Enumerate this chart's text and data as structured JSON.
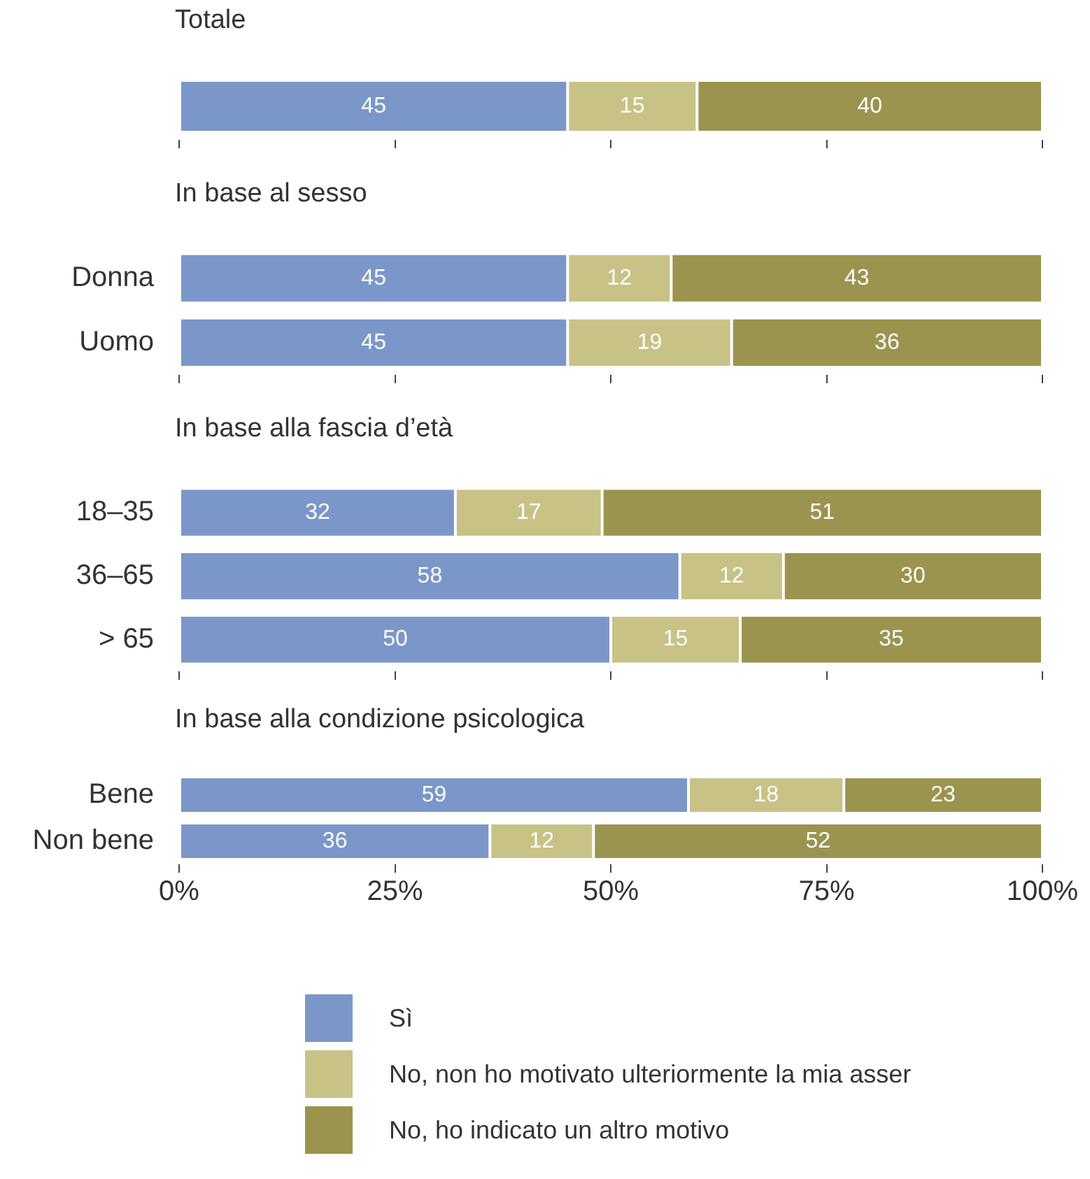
{
  "chart_data": [
    {
      "type": "bar",
      "orientation": "horizontal",
      "stacked": true,
      "title": "Totale",
      "categories": [
        null
      ],
      "tick_labels": "y",
      "data_labels": true,
      "grid": false,
      "xlim": [
        0,
        100
      ],
      "xticks": [
        {
          "value": 0,
          "label": null
        },
        {
          "value": 25,
          "label": null
        },
        {
          "value": 50,
          "label": null
        },
        {
          "value": 75,
          "label": null
        },
        {
          "value": 100,
          "label": null
        }
      ],
      "series": [
        {
          "color": "#7b97c9",
          "values": [
            45
          ]
        },
        {
          "color": "#c8c287",
          "values": [
            15
          ]
        },
        {
          "color": "#9b944f",
          "values": [
            40
          ]
        }
      ]
    },
    {
      "type": "bar",
      "orientation": "horizontal",
      "stacked": true,
      "title": "In base al sesso",
      "categories": [
        "Donna",
        "Uomo"
      ],
      "tick_labels": "y",
      "data_labels": true,
      "grid": false,
      "xlim": [
        0,
        100
      ],
      "xticks": [
        {
          "value": 0,
          "label": null
        },
        {
          "value": 25,
          "label": null
        },
        {
          "value": 50,
          "label": null
        },
        {
          "value": 75,
          "label": null
        },
        {
          "value": 100,
          "label": null
        }
      ],
      "series": [
        {
          "color": "#7b97c9",
          "values": [
            45,
            45
          ]
        },
        {
          "color": "#c8c287",
          "values": [
            12,
            19
          ]
        },
        {
          "color": "#9b944f",
          "values": [
            43,
            36
          ]
        }
      ]
    },
    {
      "type": "bar",
      "orientation": "horizontal",
      "stacked": true,
      "title": "In base alla fascia d’età",
      "categories": [
        "18–35",
        "36–65",
        "> 65"
      ],
      "tick_labels": "y",
      "data_labels": true,
      "grid": false,
      "xlim": [
        0,
        100
      ],
      "xticks": [
        {
          "value": 0,
          "label": null
        },
        {
          "value": 25,
          "label": null
        },
        {
          "value": 50,
          "label": null
        },
        {
          "value": 75,
          "label": null
        },
        {
          "value": 100,
          "label": null
        }
      ],
      "series": [
        {
          "color": "#7b97c9",
          "values": [
            32,
            58,
            50
          ]
        },
        {
          "color": "#c8c287",
          "values": [
            17,
            12,
            15
          ]
        },
        {
          "color": "#9b944f",
          "values": [
            51,
            30,
            35
          ]
        }
      ]
    },
    {
      "type": "bar",
      "orientation": "horizontal",
      "stacked": true,
      "title": "In base alla condizione psicologica",
      "categories": [
        "Bene",
        "Non bene"
      ],
      "data_labels": true,
      "grid": false,
      "legend": "bottom",
      "xlim": [
        0,
        100
      ],
      "xticks": [
        {
          "value": 0,
          "label": "0%"
        },
        {
          "value": 25,
          "label": "25%"
        },
        {
          "value": 50,
          "label": "50%"
        },
        {
          "value": 75,
          "label": "75%"
        },
        {
          "value": 100,
          "label": "100%"
        }
      ],
      "series": [
        {
          "name": "Sì",
          "color": "#7b97c9",
          "values": [
            59,
            36
          ]
        },
        {
          "name": "No, non ho motivato ulteriormente la mia asser",
          "color": "#c8c287",
          "values": [
            18,
            12
          ]
        },
        {
          "name": "No, ho indicato un altro motivo",
          "color": "#9b944f",
          "values": [
            23,
            52
          ]
        }
      ]
    }
  ]
}
